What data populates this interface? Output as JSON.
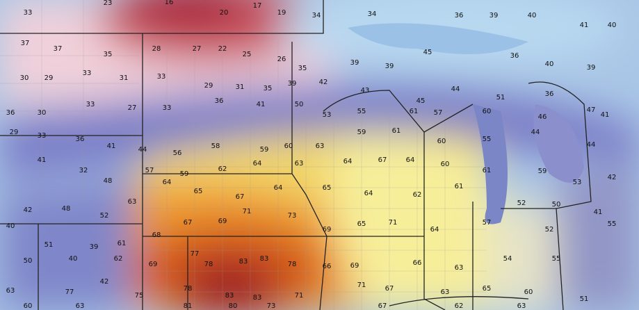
{
  "temperature_labels": [
    33,
    23,
    16,
    20,
    17,
    19,
    34,
    34,
    36,
    39,
    40,
    41,
    40,
    37,
    37,
    35,
    28,
    27,
    22,
    25,
    26,
    35,
    39,
    39,
    45,
    36,
    40,
    39,
    30,
    29,
    33,
    31,
    33,
    29,
    31,
    35,
    39,
    42,
    43,
    45,
    44,
    51,
    36,
    41,
    36,
    30,
    33,
    27,
    33,
    36,
    41,
    50,
    53,
    55,
    61,
    57,
    60,
    46,
    47,
    29,
    33,
    36,
    41,
    44,
    56,
    58,
    59,
    60,
    63,
    59,
    61,
    60,
    55,
    44,
    44,
    41,
    32,
    48,
    57,
    59,
    62,
    64,
    63,
    64,
    67,
    64,
    60,
    61,
    59,
    53,
    42,
    42,
    48,
    52,
    63,
    64,
    65,
    67,
    64,
    65,
    64,
    62,
    61,
    52,
    50,
    41,
    40,
    51,
    39,
    61,
    68,
    67,
    69,
    71,
    73,
    69,
    65,
    71,
    64,
    57,
    52,
    55,
    50,
    40,
    62,
    69,
    77,
    78,
    83,
    83,
    78,
    66,
    69,
    66,
    63,
    54,
    55,
    63,
    77,
    42,
    75,
    78,
    83,
    83,
    71,
    71,
    67,
    63,
    65,
    60,
    51,
    60,
    63,
    81,
    80,
    73,
    67,
    62,
    63
  ]
}
